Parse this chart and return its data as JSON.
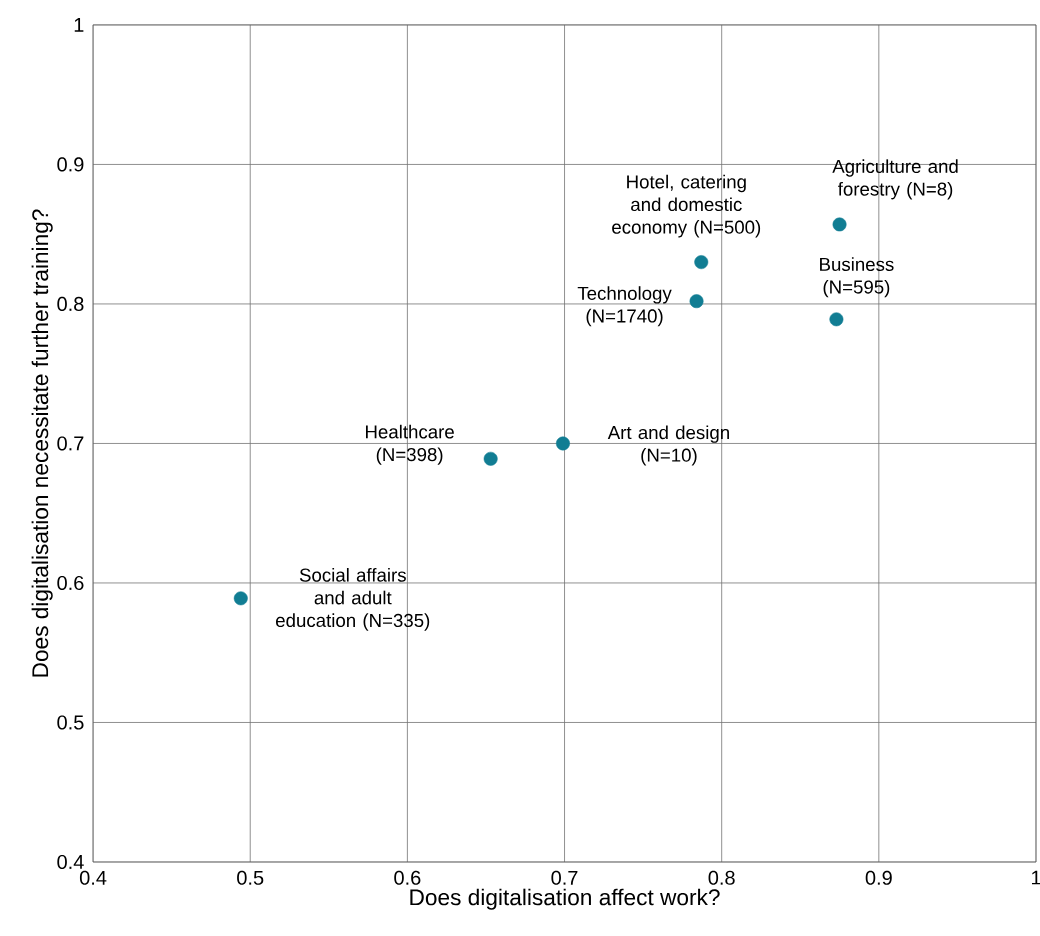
{
  "chart_data": {
    "type": "scatter",
    "x": [
      0.494,
      0.653,
      0.699,
      0.784,
      0.787,
      0.873,
      0.875
    ],
    "values": [
      0.589,
      0.689,
      0.7,
      0.802,
      0.83,
      0.789,
      0.857
    ],
    "color": "#117d93",
    "marker": "circle",
    "grid": true,
    "xlabel": "Does digitalisation affect work?",
    "ylabel": "Does digitalisation necessitate further training?",
    "xlim": [
      0.4,
      1
    ],
    "ylim": [
      0.4,
      1
    ],
    "xticks": [
      0.4,
      0.5,
      0.6,
      0.7,
      0.8,
      0.9,
      1
    ],
    "yticks": [
      0.4,
      0.5,
      0.6,
      0.7,
      0.8,
      0.9,
      1
    ],
    "annotations": [
      {
        "text": "Social affairs and adult education (N=335)",
        "x": 0.494,
        "y": 0.589
      },
      {
        "text": "Healthcare (N=398)",
        "x": 0.653,
        "y": 0.689
      },
      {
        "text": "Art and design (N=10)",
        "x": 0.699,
        "y": 0.7
      },
      {
        "text": "Technology (N=1740)",
        "x": 0.784,
        "y": 0.802
      },
      {
        "text": "Hotel, catering and domestic economy (N=500)",
        "x": 0.787,
        "y": 0.83
      },
      {
        "text": "Business (N=595)",
        "x": 0.873,
        "y": 0.789
      },
      {
        "text": "Agriculture and forestry (N=8)",
        "x": 0.875,
        "y": 0.857
      }
    ]
  }
}
